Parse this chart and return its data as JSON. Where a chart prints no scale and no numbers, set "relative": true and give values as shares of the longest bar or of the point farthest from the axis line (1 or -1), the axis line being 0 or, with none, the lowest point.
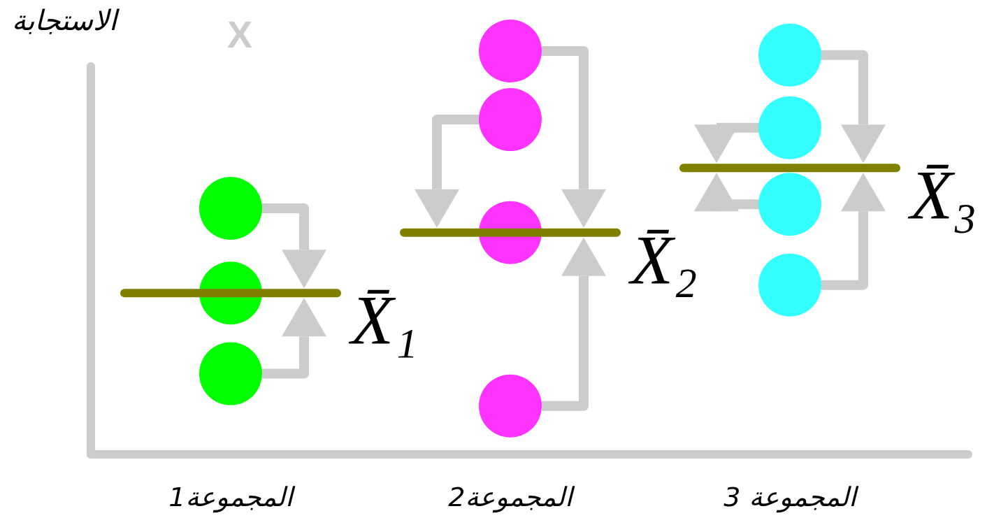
{
  "chart_data": {
    "type": "scatter",
    "relative": true,
    "ylabel": "الاستجابة",
    "categories": [
      "المجموعة1",
      "المجموعة2",
      "المجموعة 3"
    ],
    "marker": "circle",
    "series": [
      {
        "color": "#00ff00",
        "x": [
          "المجموعة1",
          "المجموعة1",
          "المجموعة1"
        ],
        "values": [
          0.61,
          0.4,
          0.2
        ]
      },
      {
        "color": "#ff33ff",
        "x": [
          "المجموعة2",
          "المجموعة2",
          "المجموعة2",
          "المجموعة2"
        ],
        "values": [
          1.0,
          0.83,
          0.55,
          0.12
        ]
      },
      {
        "color": "#33ffff",
        "x": [
          "المجموعة 3",
          "المجموعة 3",
          "المجموعة 3",
          "المجموعة 3"
        ],
        "values": [
          0.99,
          0.81,
          0.62,
          0.42
        ]
      }
    ],
    "ref_lines": [
      {
        "axis": "y",
        "value": 0.4,
        "label": "X̄₁",
        "color": "#808000"
      },
      {
        "axis": "y",
        "value": 0.55,
        "label": "X̄₂",
        "color": "#808000"
      },
      {
        "axis": "y",
        "value": 0.71,
        "label": "X̄₃",
        "color": "#808000"
      }
    ],
    "annotations": [
      "X"
    ]
  }
}
